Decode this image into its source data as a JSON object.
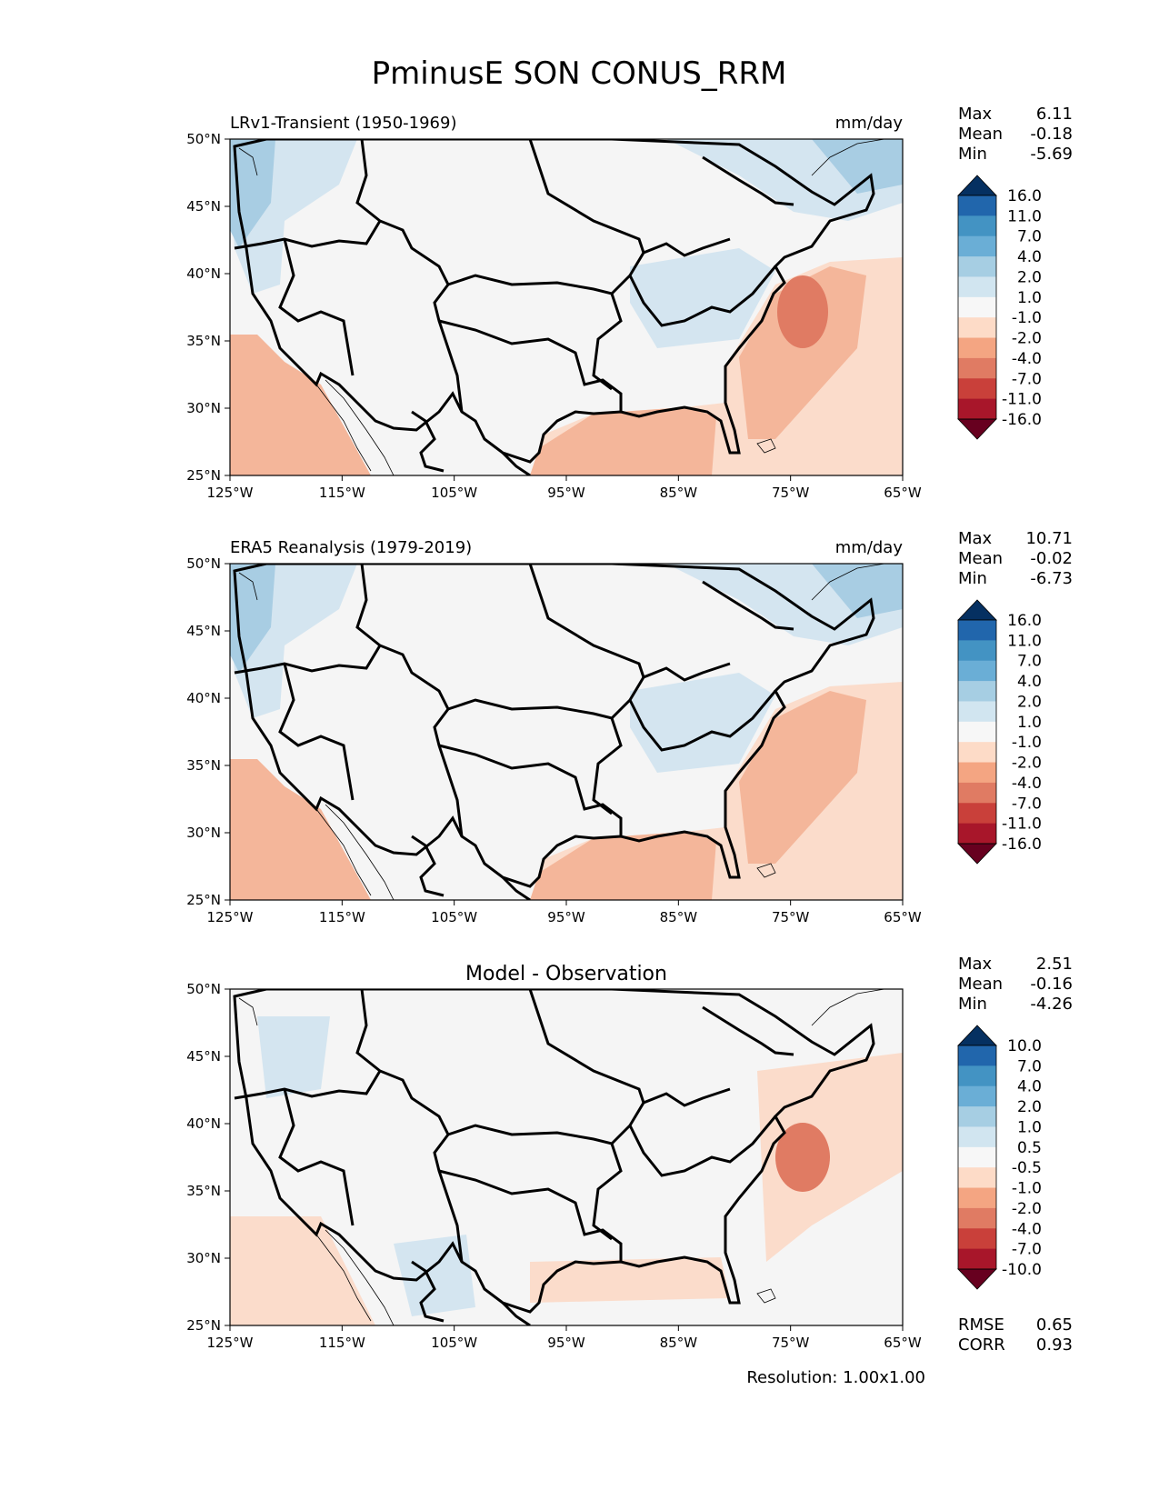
{
  "title": "PminusE SON CONUS_RRM",
  "resolution_label": "Resolution: 1.00x1.00",
  "colors": {
    "ocean_pos": "#f4b69a",
    "ocean_strong": "#e07b63",
    "land_bg": "#f5f5f5",
    "light_blue": "#d4e5f0",
    "mid_blue": "#a8cde3",
    "light_red": "#fbdccb",
    "outline": "#000000"
  },
  "axes": {
    "lat_labels": [
      "50°N",
      "45°N",
      "40°N",
      "35°N",
      "30°N",
      "25°N"
    ],
    "lon_labels": [
      "125°W",
      "115°W",
      "105°W",
      "95°W",
      "85°W",
      "75°W",
      "65°W"
    ]
  },
  "panels": [
    {
      "id": "model",
      "title": "LRv1-Transient (1950-1969)",
      "title_centered": false,
      "units": "mm/day",
      "stats": [
        {
          "label": "Max",
          "value": "6.11"
        },
        {
          "label": "Mean",
          "value": "-0.18"
        },
        {
          "label": "Min",
          "value": "-5.69"
        }
      ],
      "colorbar": {
        "labels": [
          "16.0",
          "11.0",
          "7.0",
          "4.0",
          "2.0",
          "1.0",
          "-1.0",
          "-2.0",
          "-4.0",
          "-7.0",
          "-11.0",
          "-16.0"
        ],
        "colors": [
          "#053061",
          "#2166ac",
          "#4393c3",
          "#6aaed6",
          "#a6cee3",
          "#d1e5f0",
          "#f7f7f7",
          "#fddbc7",
          "#f4a582",
          "#e07b63",
          "#c9403a",
          "#a8162a",
          "#67001f"
        ]
      },
      "extra_stats": []
    },
    {
      "id": "obs",
      "title": "ERA5 Reanalysis (1979-2019)",
      "title_centered": false,
      "units": "mm/day",
      "stats": [
        {
          "label": "Max",
          "value": "10.71"
        },
        {
          "label": "Mean",
          "value": "-0.02"
        },
        {
          "label": "Min",
          "value": "-6.73"
        }
      ],
      "colorbar": {
        "labels": [
          "16.0",
          "11.0",
          "7.0",
          "4.0",
          "2.0",
          "1.0",
          "-1.0",
          "-2.0",
          "-4.0",
          "-7.0",
          "-11.0",
          "-16.0"
        ],
        "colors": [
          "#053061",
          "#2166ac",
          "#4393c3",
          "#6aaed6",
          "#a6cee3",
          "#d1e5f0",
          "#f7f7f7",
          "#fddbc7",
          "#f4a582",
          "#e07b63",
          "#c9403a",
          "#a8162a",
          "#67001f"
        ]
      },
      "extra_stats": []
    },
    {
      "id": "diff",
      "title": "Model - Observation",
      "title_centered": true,
      "units": "",
      "stats": [
        {
          "label": "Max",
          "value": "2.51"
        },
        {
          "label": "Mean",
          "value": "-0.16"
        },
        {
          "label": "Min",
          "value": "-4.26"
        }
      ],
      "colorbar": {
        "labels": [
          "10.0",
          "7.0",
          "4.0",
          "2.0",
          "1.0",
          "0.5",
          "-0.5",
          "-1.0",
          "-2.0",
          "-4.0",
          "-7.0",
          "-10.0"
        ],
        "colors": [
          "#053061",
          "#2166ac",
          "#4393c3",
          "#6aaed6",
          "#a6cee3",
          "#d1e5f0",
          "#f7f7f7",
          "#fddbc7",
          "#f4a582",
          "#e07b63",
          "#c9403a",
          "#a8162a",
          "#67001f"
        ]
      },
      "extra_stats": [
        {
          "label": "RMSE",
          "value": "0.65"
        },
        {
          "label": "CORR",
          "value": "0.93"
        }
      ]
    }
  ]
}
